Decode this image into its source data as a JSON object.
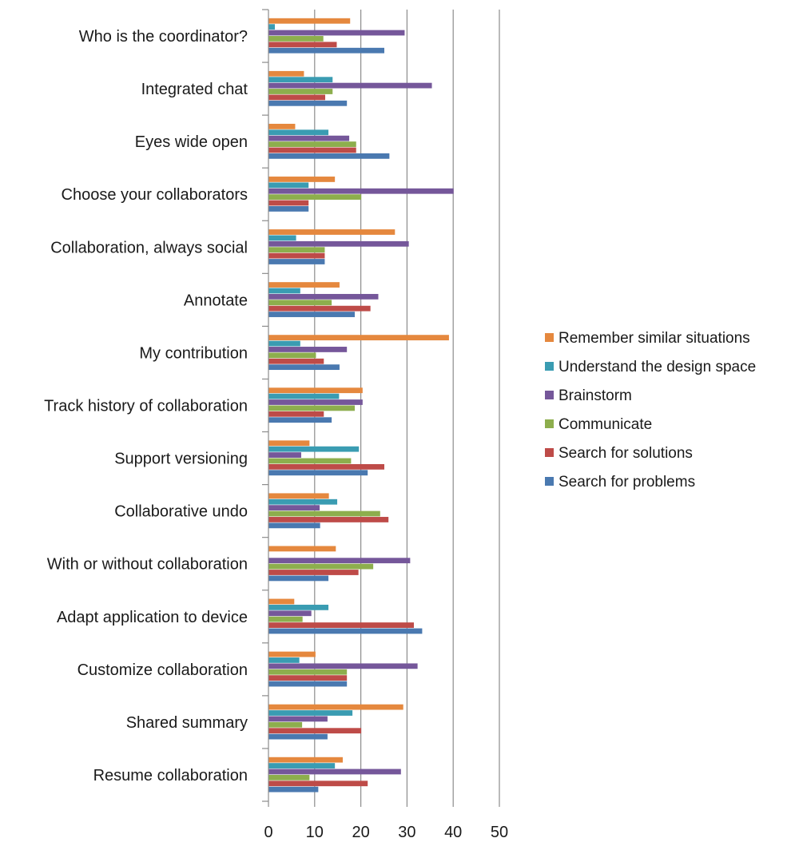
{
  "chart_data": {
    "type": "bar",
    "orientation": "horizontal",
    "title": "",
    "xlabel": "",
    "ylabel": "",
    "xlim": [
      0,
      50
    ],
    "xticks": [
      0,
      10,
      20,
      30,
      40,
      50
    ],
    "grid": "vertical",
    "legend_position": "right",
    "categories": [
      "Who is the coordinator?",
      "Integrated chat",
      "Eyes wide open",
      "Choose your collaborators",
      "Collaboration, always social",
      "Annotate",
      "My contribution",
      "Track history of collaboration",
      "Support versioning",
      "Collaborative undo",
      "With or without collaboration",
      "Adapt application to device",
      "Customize collaboration",
      "Shared summary",
      "Resume collaboration"
    ],
    "series": [
      {
        "name": "Remember similar situations",
        "color": "#E5883E",
        "values": [
          17.6,
          7.6,
          5.7,
          14.3,
          27.3,
          15.3,
          39.0,
          20.3,
          8.8,
          13.0,
          14.5,
          5.5,
          10.1,
          29.1,
          16.0
        ]
      },
      {
        "name": "Understand the design space",
        "color": "#3A9CB2",
        "values": [
          1.3,
          13.8,
          12.9,
          8.6,
          5.9,
          6.8,
          6.8,
          15.2,
          19.5,
          14.8,
          0,
          12.9,
          6.6,
          18.1,
          14.3
        ]
      },
      {
        "name": "Brainstorm",
        "color": "#75579A",
        "values": [
          29.4,
          35.3,
          17.4,
          40.0,
          30.3,
          23.7,
          16.9,
          20.3,
          7.0,
          11.0,
          30.6,
          9.2,
          32.2,
          12.7,
          28.6
        ]
      },
      {
        "name": "Communicate",
        "color": "#8DAE4D",
        "values": [
          11.8,
          13.8,
          18.9,
          20.0,
          12.1,
          13.6,
          10.2,
          18.6,
          17.8,
          24.1,
          22.6,
          7.3,
          16.9,
          7.2,
          8.8
        ]
      },
      {
        "name": "Search for solutions",
        "color": "#BE4B48",
        "values": [
          14.7,
          12.2,
          18.9,
          8.6,
          12.1,
          22.0,
          11.9,
          11.9,
          25.0,
          25.9,
          19.4,
          31.4,
          16.9,
          20.0,
          21.4
        ]
      },
      {
        "name": "Search for problems",
        "color": "#4A79B0",
        "values": [
          25.0,
          16.9,
          26.1,
          8.6,
          12.1,
          18.6,
          15.3,
          13.6,
          21.4,
          11.1,
          12.9,
          33.2,
          16.9,
          12.7,
          10.7
        ]
      }
    ]
  }
}
